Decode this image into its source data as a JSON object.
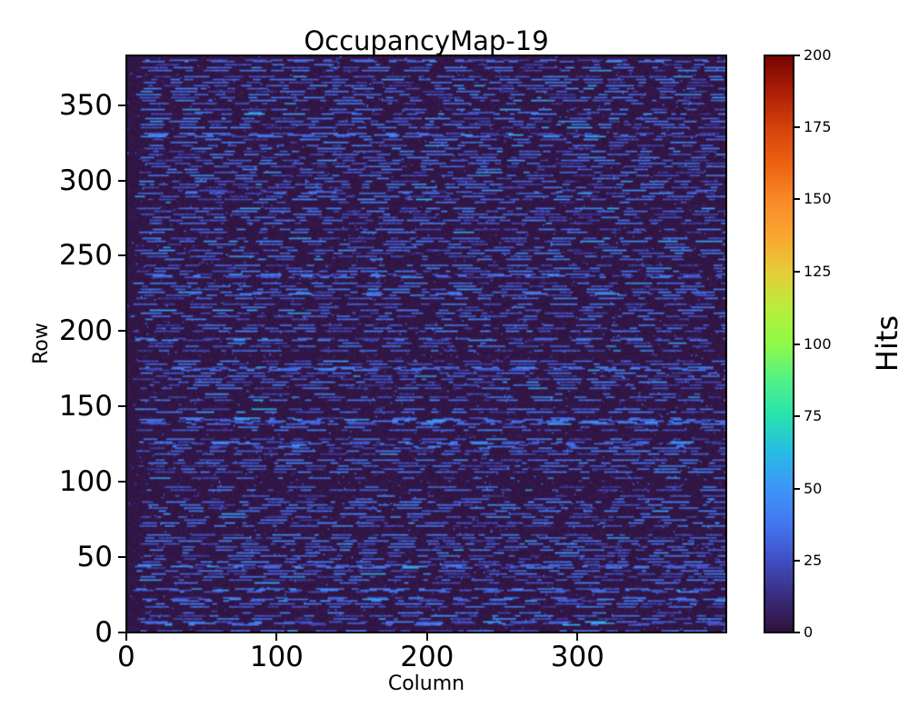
{
  "figure": {
    "background": "#ffffff",
    "text_color": "#000000"
  },
  "chart_data": {
    "type": "heatmap",
    "title": "OccupancyMap-19",
    "xlabel": "Column",
    "ylabel": "Row",
    "x_ticks": [
      0,
      100,
      200,
      300
    ],
    "y_ticks": [
      0,
      50,
      100,
      150,
      200,
      250,
      300,
      350
    ],
    "grid": {
      "cols": 400,
      "rows": 384
    },
    "origin": "lower",
    "x_range": [
      0,
      400
    ],
    "y_range": [
      0,
      384
    ],
    "legend": "none",
    "gridlines": false,
    "colormap": {
      "name": "turbo",
      "stops": [
        [
          0.0,
          "#30123b"
        ],
        [
          0.0625,
          "#3a2d80"
        ],
        [
          0.125,
          "#4150c5"
        ],
        [
          0.1875,
          "#4377f2"
        ],
        [
          0.25,
          "#3e96f7"
        ],
        [
          0.3125,
          "#27bce5"
        ],
        [
          0.375,
          "#28e3ae"
        ],
        [
          0.4375,
          "#52f187"
        ],
        [
          0.5,
          "#90fa47"
        ],
        [
          0.5625,
          "#b8ee3c"
        ],
        [
          0.625,
          "#e6cd38"
        ],
        [
          0.6875,
          "#f9a730"
        ],
        [
          0.75,
          "#fa8a28"
        ],
        [
          0.8125,
          "#ec6311"
        ],
        [
          0.875,
          "#d7430b"
        ],
        [
          0.9375,
          "#ad2006"
        ],
        [
          1.0,
          "#7a0403"
        ]
      ]
    },
    "colorbar": {
      "label": "Hits",
      "vmin": 0,
      "vmax": 200,
      "ticks": [
        0,
        25,
        50,
        75,
        100,
        125,
        150,
        175,
        200
      ]
    },
    "data_pattern": {
      "description": "Dark near-zero background with horizontal dashed streaks of low occupancy (blue/cyan, ~15-65 hits) on roughly alternating rows; no cells approach the 200-hit maximum",
      "background_value_range": [
        0,
        6
      ],
      "streak_value_range": [
        15,
        65
      ],
      "streak_row_period": 2,
      "streak_row_probability": 0.82,
      "off_row_streak_probability": 0.1,
      "dash_col_length_range": [
        3,
        20
      ],
      "dash_gap_range": [
        2,
        15
      ],
      "sprinkle_probability": 0.015,
      "seed": 19
    }
  }
}
